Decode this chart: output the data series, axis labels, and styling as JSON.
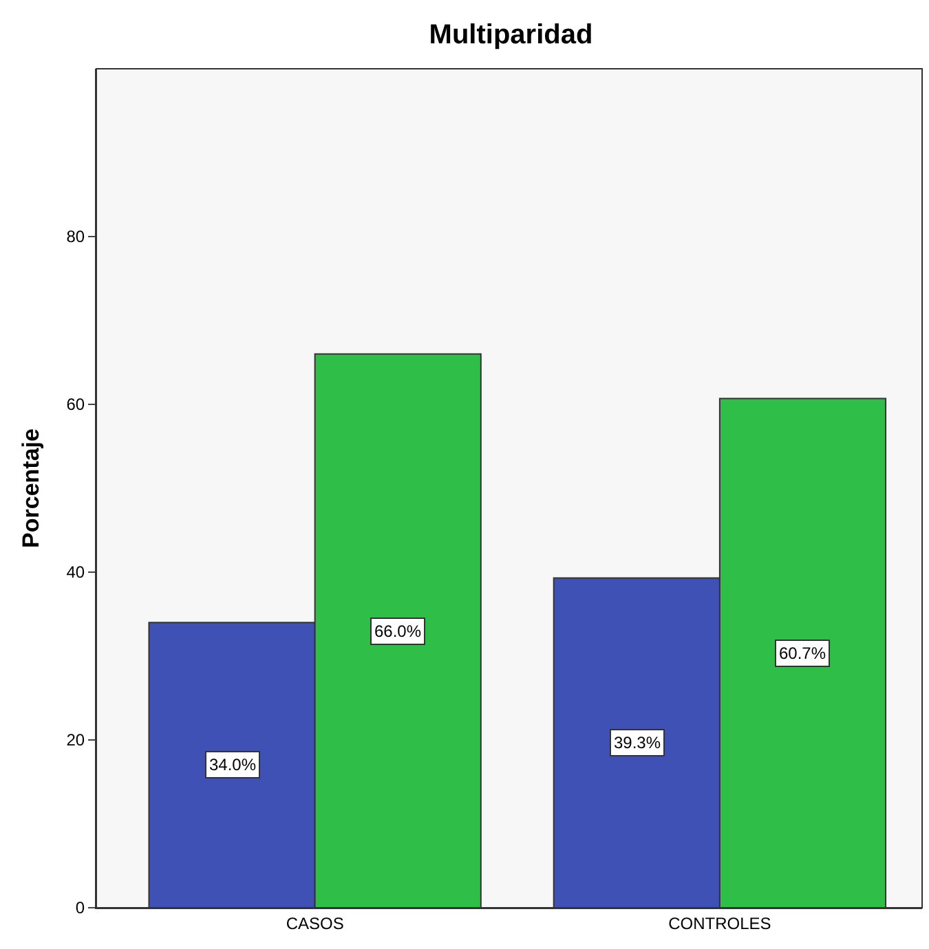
{
  "chart_data": {
    "type": "bar",
    "title": "Multiparidad",
    "ylabel": "Porcentaje",
    "categories": [
      "CASOS",
      "CONTROLES"
    ],
    "series": [
      {
        "color": "#3f51b5",
        "values": [
          34.0,
          39.3
        ],
        "value_labels": [
          "34.0%",
          "39.3%"
        ]
      },
      {
        "color": "#2fbe48",
        "values": [
          66.0,
          60.7
        ],
        "value_labels": [
          "66.0%",
          "60.7%"
        ]
      }
    ],
    "ylim": [
      0,
      100
    ],
    "yticks": [
      0,
      20,
      40,
      60,
      80
    ],
    "grid": false
  }
}
